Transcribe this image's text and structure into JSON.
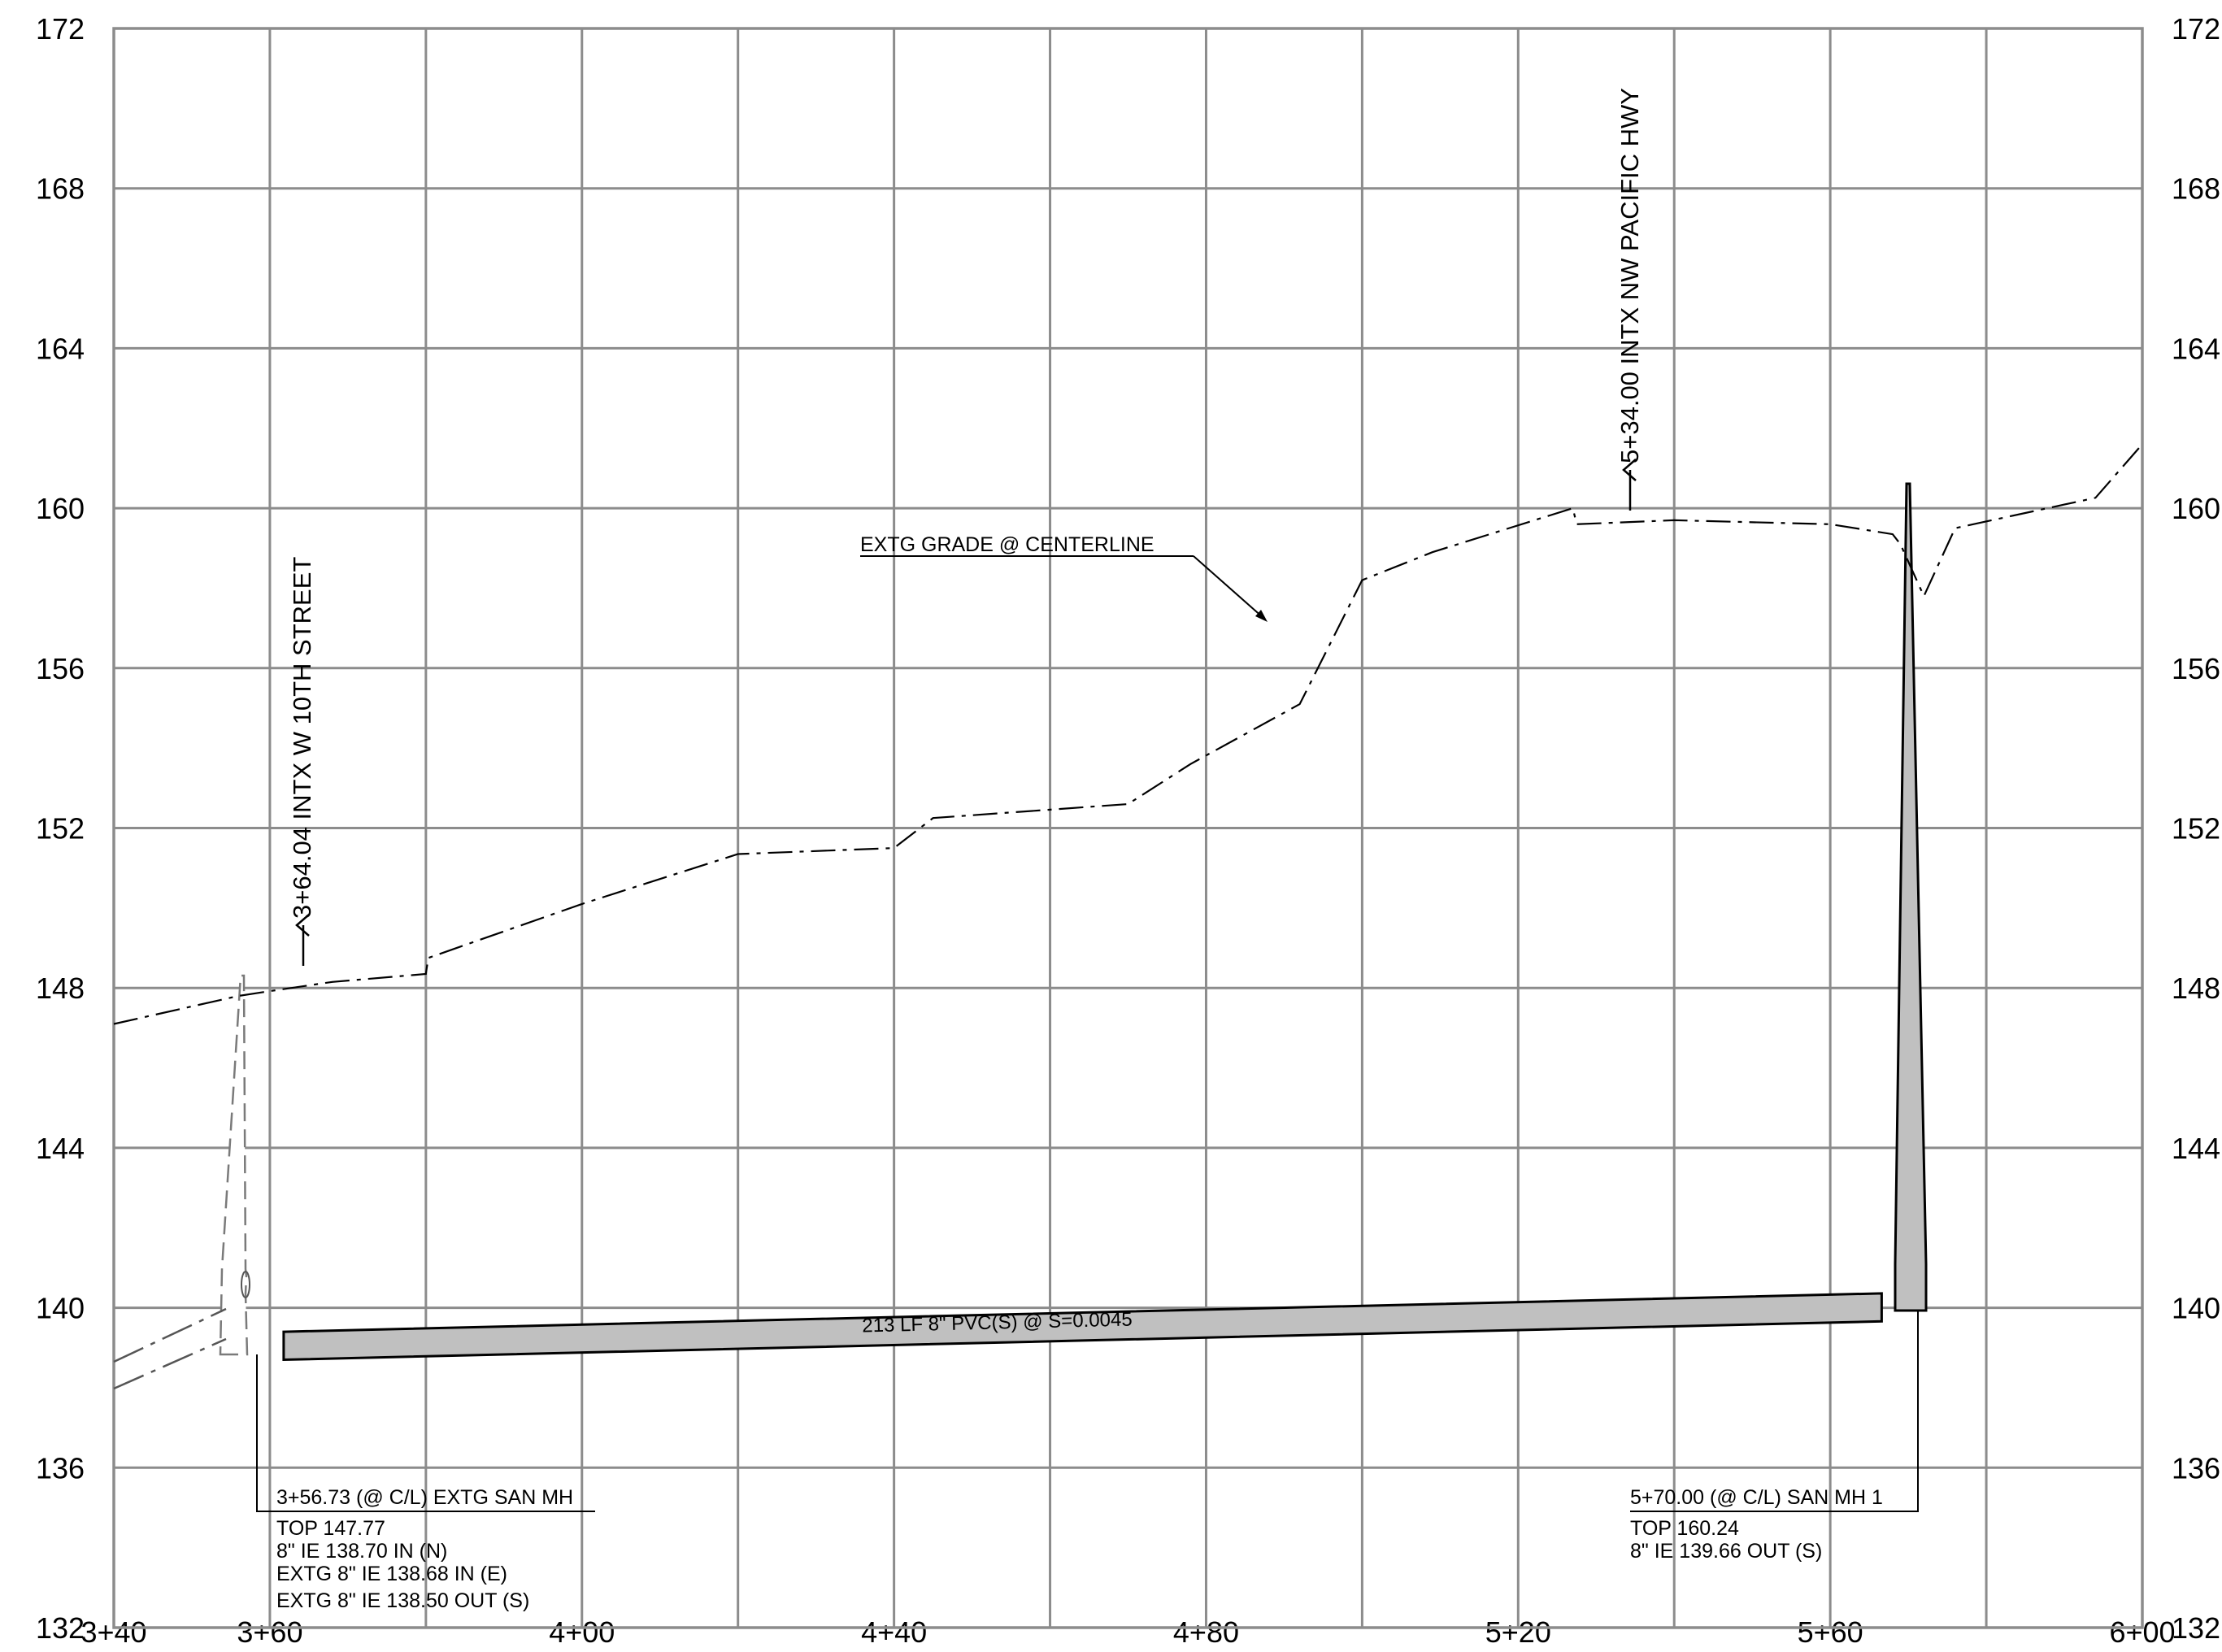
{
  "profile": {
    "x_axis": {
      "min": 340,
      "max": 600,
      "tick_labels": [
        "3+40",
        "3+60",
        "4+00",
        "4+40",
        "4+80",
        "5+20",
        "5+60",
        "6+00"
      ],
      "tick_values": [
        340,
        360,
        400,
        440,
        480,
        520,
        560,
        600
      ],
      "grid_step": 20
    },
    "y_axis": {
      "min": 132,
      "max": 172,
      "tick_labels": [
        "172",
        "168",
        "164",
        "160",
        "156",
        "152",
        "148",
        "144",
        "140",
        "136",
        "132"
      ],
      "tick_values": [
        172,
        168,
        164,
        160,
        156,
        152,
        148,
        144,
        140,
        136,
        132
      ],
      "grid_step": 4
    },
    "grid": true,
    "colors": {
      "grid": "#8c8c8c",
      "pipe_fill": "#c0c0c0",
      "line": "#000000"
    },
    "existing_grade": {
      "label": "EXTG GRADE @ CENTERLINE",
      "points": [
        [
          340,
          147.1
        ],
        [
          356,
          147.8
        ],
        [
          360,
          147.92
        ],
        [
          368,
          148.15
        ],
        [
          380,
          148.35
        ],
        [
          380.3,
          148.75
        ],
        [
          400,
          150.1
        ],
        [
          420,
          151.35
        ],
        [
          440,
          151.5
        ],
        [
          445,
          152.25
        ],
        [
          470,
          152.6
        ],
        [
          478,
          153.6
        ],
        [
          492,
          155.1
        ],
        [
          500,
          158.2
        ],
        [
          509,
          158.9
        ],
        [
          527,
          160.0
        ],
        [
          527.5,
          159.6
        ],
        [
          540,
          159.7
        ],
        [
          560,
          159.6
        ],
        [
          568,
          159.35
        ],
        [
          569,
          159.1
        ],
        [
          572,
          157.8
        ],
        [
          576,
          159.5
        ],
        [
          594,
          160.26
        ],
        [
          600,
          161.6
        ]
      ]
    },
    "existing_grade_ext": [
      [
        594,
        160.26
      ],
      [
        613.6,
        161.7
      ]
    ],
    "stations": [
      {
        "label": "3+64.04 INTX W 10TH STREET",
        "station": 364.04
      },
      {
        "label": "5+34.00 INTX NW PACIFIC HWY",
        "station": 534.0
      }
    ],
    "pipe": {
      "label": "213 LF 8\" PVC(S) @ S=0.0045",
      "start_station": 360.0,
      "end_station": 566.7,
      "start_bottom": 138.7,
      "end_bottom": 139.66,
      "start_top": 139.4,
      "end_top": 140.36
    },
    "manholes": [
      {
        "name": "existing",
        "callout_title": "3+56.73 (@ C/L) EXTG SAN MH",
        "lines": [
          "TOP 147.77",
          "8\" IE 138.70 IN (N)",
          "EXTG 8\" IE 138.68 IN (E)",
          "EXTG 8\" IE 138.50 OUT (S)"
        ]
      },
      {
        "name": "san-mh-1",
        "callout_title": "5+70.00 (@ C/L) SAN MH 1",
        "lines": [
          "TOP 160.24",
          "8\" IE 139.66 OUT (S)"
        ]
      }
    ]
  }
}
